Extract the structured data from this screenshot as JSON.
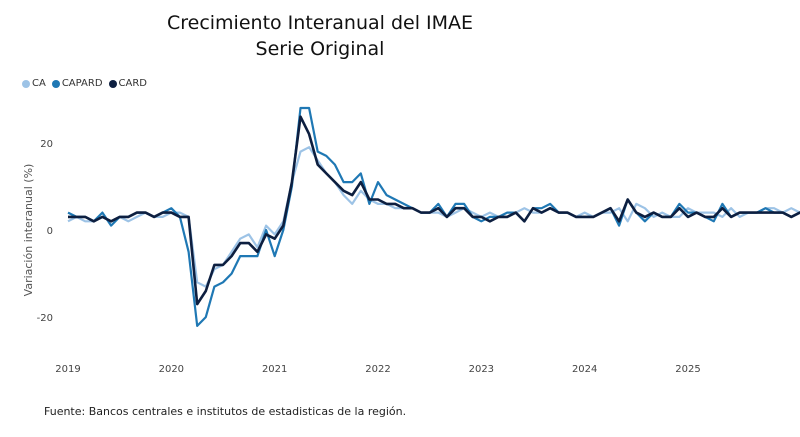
{
  "chart_data": {
    "type": "line",
    "title": [
      "Crecimiento Interanual del IMAE",
      "Serie Original"
    ],
    "ylabel": "Variación interanual (%)",
    "xlabel": "",
    "ylim": [
      -28,
      28
    ],
    "xlim": [
      2019.0,
      2025.9
    ],
    "yticks": [
      20,
      0,
      -20
    ],
    "xticks": [
      "2019",
      "2020",
      "2021",
      "2022",
      "2023",
      "2024",
      "2025"
    ],
    "grid": false,
    "legend_position": "top-left",
    "source": "Fuente: Bancos centrales e institutos de estadisticas de la región.",
    "x_start": "2019-01",
    "series": [
      {
        "name": "CA",
        "color": "#9dc3e6",
        "values": [
          2,
          3,
          2,
          2,
          3,
          2,
          3,
          2,
          3,
          4,
          3,
          3,
          4,
          4,
          3,
          -12,
          -13,
          -9,
          -8,
          -5,
          -2,
          -1,
          -4,
          1,
          -1,
          2,
          11,
          18,
          19,
          16,
          13,
          11,
          8,
          6,
          9,
          7,
          6,
          6,
          5,
          5,
          5,
          4,
          4,
          4,
          3,
          4,
          5,
          4,
          3,
          4,
          3,
          3,
          4,
          5,
          4,
          4,
          5,
          4,
          4,
          3,
          4,
          3,
          4,
          4,
          5,
          2,
          6,
          5,
          3,
          4,
          3,
          3,
          5,
          4,
          4,
          4,
          3,
          5,
          3,
          4,
          4,
          5,
          5,
          4,
          5,
          4,
          4
        ]
      },
      {
        "name": "CAPARD",
        "color": "#1f78b4",
        "values": [
          4,
          3,
          3,
          2,
          4,
          1,
          3,
          3,
          4,
          4,
          3,
          4,
          5,
          3,
          -5,
          -22,
          -20,
          -13,
          -12,
          -10,
          -6,
          -6,
          -6,
          0,
          -6,
          0,
          10,
          28,
          28,
          18,
          17,
          15,
          11,
          11,
          13,
          6,
          11,
          8,
          7,
          6,
          5,
          4,
          4,
          6,
          3,
          6,
          6,
          3,
          2,
          3,
          3,
          4,
          4,
          2,
          5,
          5,
          6,
          4,
          4,
          3,
          3,
          3,
          4,
          5,
          1,
          7,
          4,
          2,
          4,
          3,
          3,
          6,
          4,
          4,
          3,
          2,
          6,
          3,
          4,
          4,
          4,
          5,
          4,
          4,
          3,
          4,
          4
        ]
      },
      {
        "name": "CARD",
        "color": "#0d1f40",
        "values": [
          3,
          3,
          3,
          2,
          3,
          2,
          3,
          3,
          4,
          4,
          3,
          4,
          4,
          3,
          3,
          -17,
          -14,
          -8,
          -8,
          -6,
          -3,
          -3,
          -5,
          -1,
          -2,
          1,
          11,
          26,
          22,
          15,
          13,
          11,
          9,
          8,
          11,
          7,
          7,
          6,
          6,
          5,
          5,
          4,
          4,
          5,
          3,
          5,
          5,
          3,
          3,
          2,
          3,
          3,
          4,
          2,
          5,
          4,
          5,
          4,
          4,
          3,
          3,
          3,
          4,
          5,
          2,
          7,
          4,
          3,
          4,
          3,
          3,
          5,
          3,
          4,
          3,
          3,
          5,
          3,
          4,
          4,
          4,
          4,
          4,
          4,
          3,
          4,
          4
        ]
      }
    ]
  }
}
